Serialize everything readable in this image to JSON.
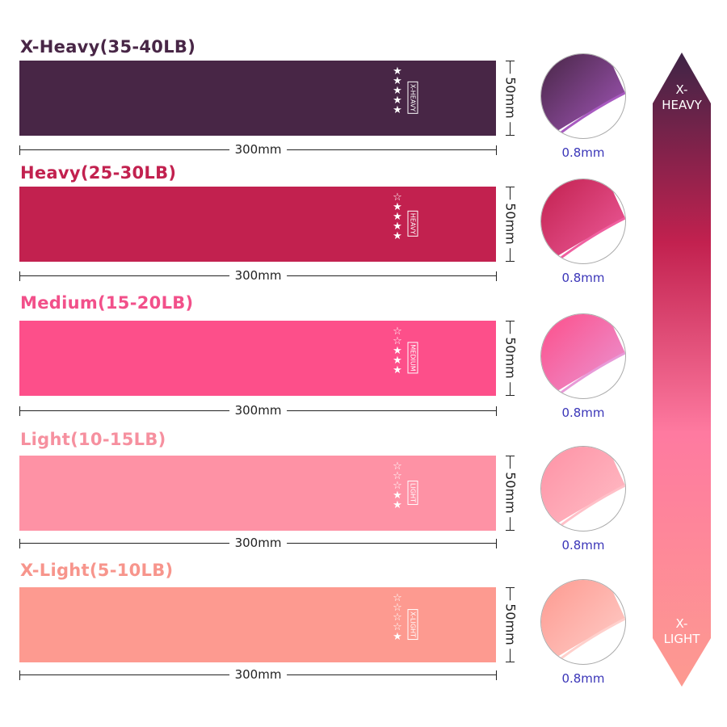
{
  "bands": [
    {
      "title": "X-Heavy(35-40LB)",
      "level": "X-HEAVY",
      "stars": 5,
      "color": "#482646",
      "title_color": "#482646",
      "edge": "#a85ac0",
      "width": "300mm",
      "height": "50mm",
      "thickness": "0.8mm"
    },
    {
      "title": "Heavy(25-30LB)",
      "level": "HEAVY",
      "stars": 4,
      "color": "#c2214f",
      "title_color": "#c2214f",
      "edge": "#f060a0",
      "width": "300mm",
      "height": "50mm",
      "thickness": "0.8mm"
    },
    {
      "title": "Medium(15-20LB)",
      "level": "MEDIUM",
      "stars": 3,
      "color": "#fd4f8a",
      "title_color": "#f2508a",
      "edge": "#e89ad8",
      "width": "300mm",
      "height": "50mm",
      "thickness": "0.8mm"
    },
    {
      "title": "Light(10-15LB)",
      "level": "LIGHT",
      "stars": 2,
      "color": "#fe92a5",
      "title_color": "#f6909f",
      "edge": "#ffc0c8",
      "width": "300mm",
      "height": "50mm",
      "thickness": "0.8mm"
    },
    {
      "title": "X-Light(5-10LB)",
      "level": "X-LIGHT",
      "stars": 1,
      "color": "#fd9a90",
      "title_color": "#f7958c",
      "edge": "#ffd0cc",
      "width": "300mm",
      "height": "50mm",
      "thickness": "0.8mm"
    }
  ],
  "scale": {
    "top_label_1": "X-",
    "top_label_2": "HEAVY",
    "bottom_label_1": "X-",
    "bottom_label_2": "LIGHT",
    "gradient": [
      "#3e2446",
      "#c2214f",
      "#fe7aa0",
      "#fd9a90"
    ]
  },
  "max_stars": 5
}
